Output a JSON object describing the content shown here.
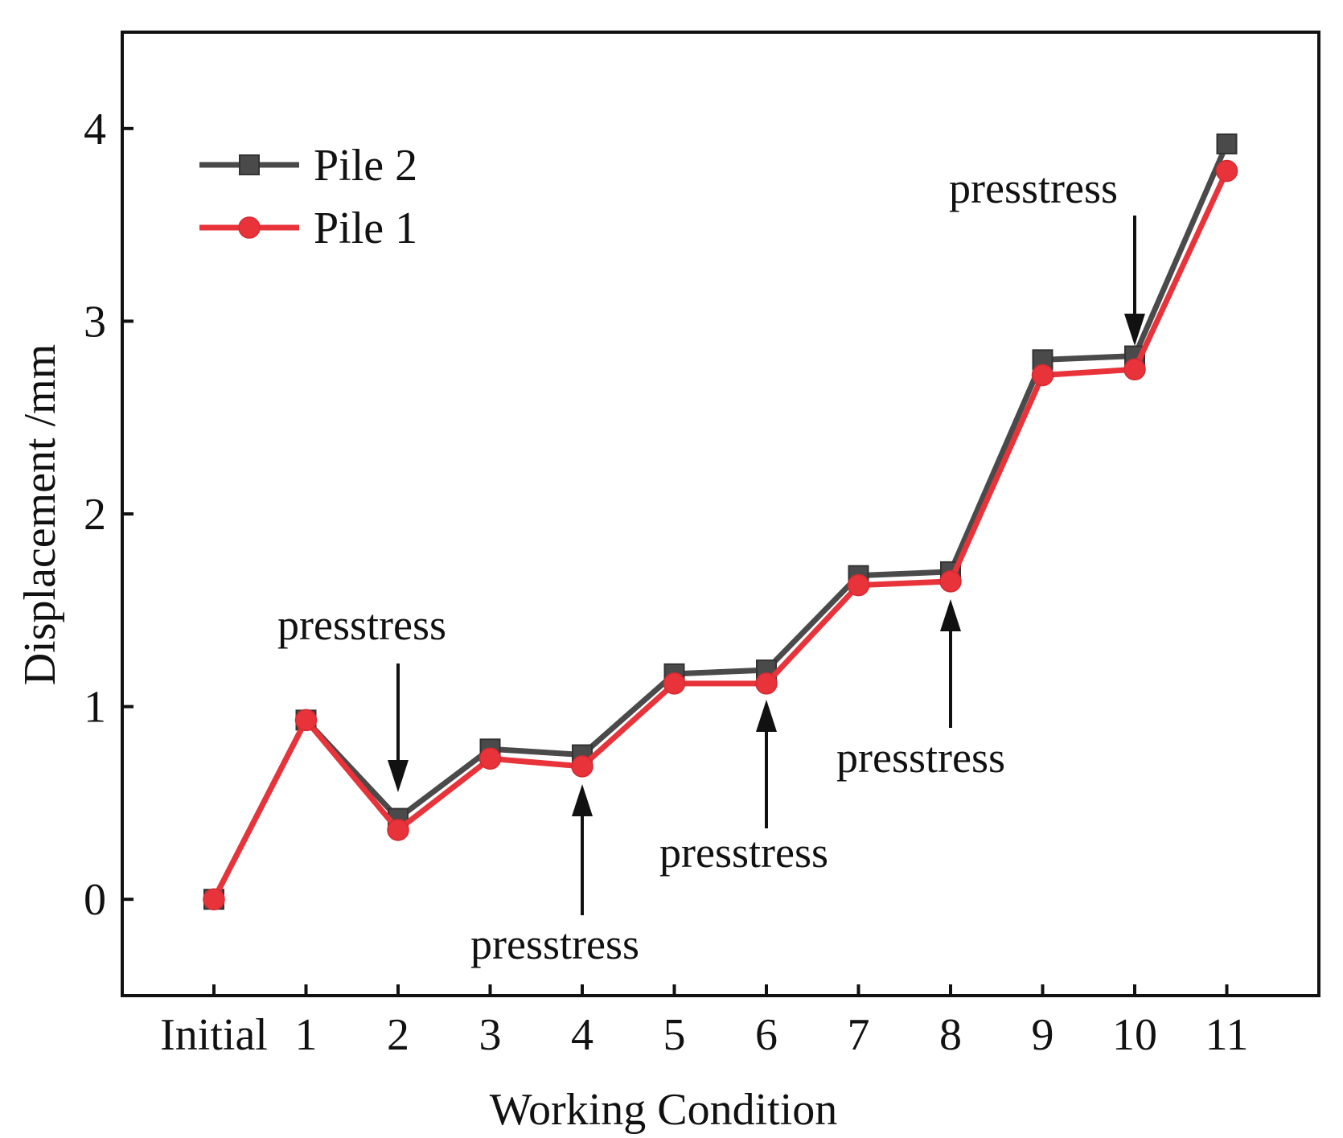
{
  "chart_data": {
    "type": "line",
    "title": "",
    "xlabel": "Working Condition",
    "ylabel": "Displacement /mm",
    "categories": [
      "Initial",
      "1",
      "2",
      "3",
      "4",
      "5",
      "6",
      "7",
      "8",
      "9",
      "10",
      "11"
    ],
    "ylim": [
      -0.5,
      4.5
    ],
    "yticks": [
      0,
      1,
      2,
      3,
      4
    ],
    "grid": false,
    "legend": "top-left",
    "series": [
      {
        "name": "Pile 2",
        "marker": "square",
        "color": "#4a4a4a",
        "values": [
          0,
          0.93,
          0.42,
          0.78,
          0.75,
          1.17,
          1.19,
          1.68,
          1.7,
          2.8,
          2.82,
          3.92
        ]
      },
      {
        "name": "Pile 1",
        "marker": "circle",
        "color": "#e8333a",
        "values": [
          0,
          0.93,
          0.36,
          0.73,
          0.69,
          1.12,
          1.12,
          1.63,
          1.65,
          2.72,
          2.75,
          3.78
        ]
      }
    ],
    "annotations": [
      {
        "text": "presstress",
        "category": "2",
        "direction": "down"
      },
      {
        "text": "presstress",
        "category": "4",
        "direction": "up"
      },
      {
        "text": "presstress",
        "category": "6",
        "direction": "up"
      },
      {
        "text": "presstress",
        "category": "8",
        "direction": "up"
      },
      {
        "text": "presstress",
        "category": "10",
        "direction": "down"
      }
    ]
  }
}
